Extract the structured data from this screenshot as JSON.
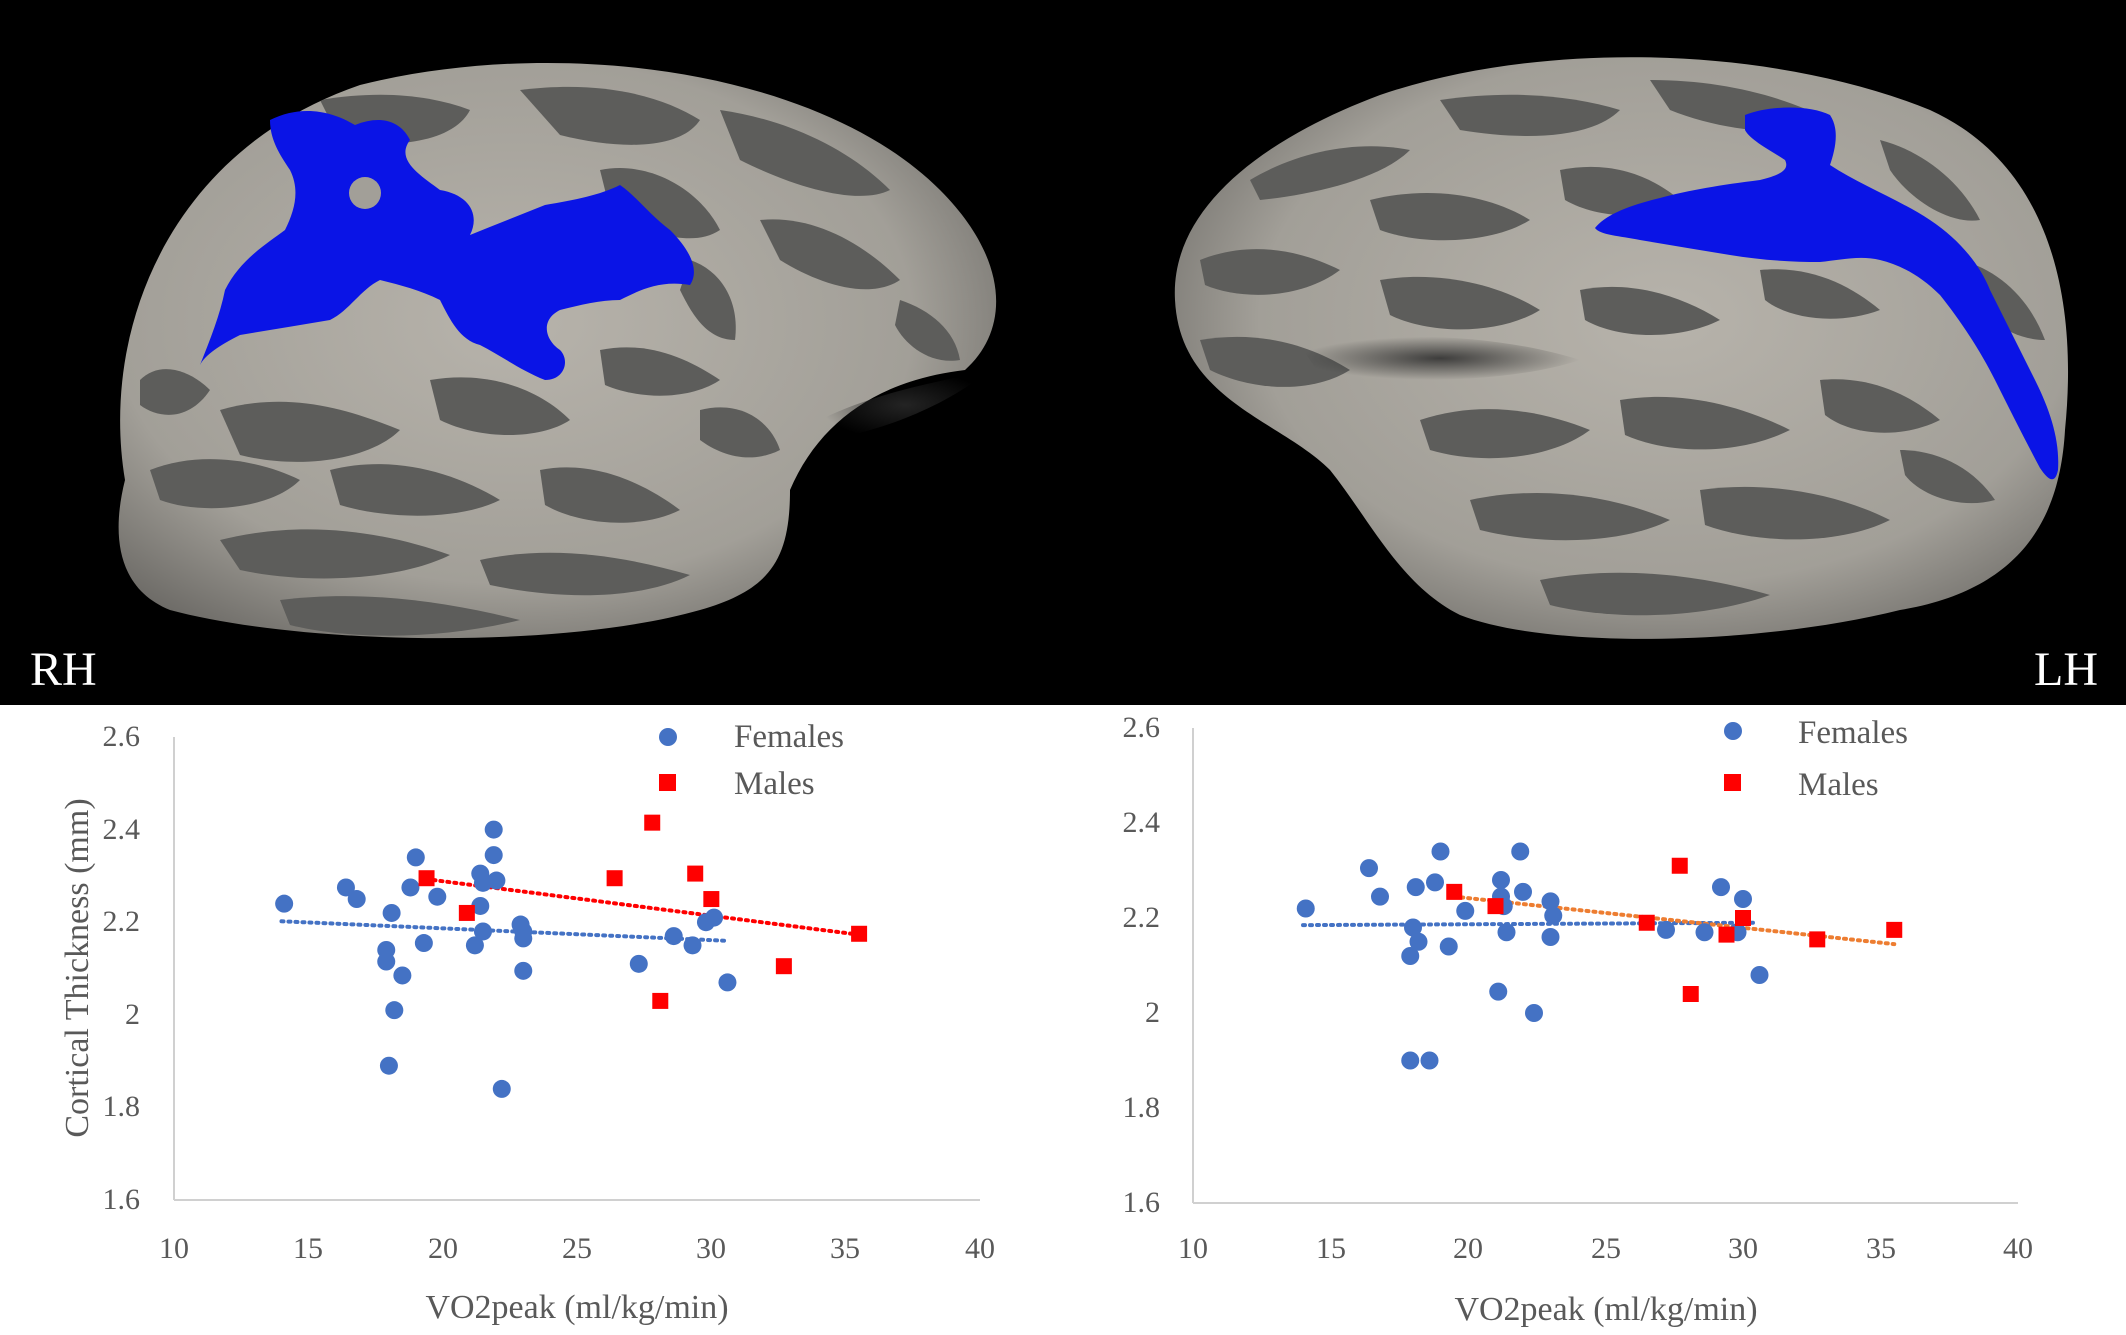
{
  "brain_panel": {
    "right_label": "RH",
    "left_label": "LH",
    "colors": {
      "background": "#000000",
      "surface_light": "#a29f98",
      "surface_dark": "#5d5d5b",
      "cluster": "#0a14e6"
    }
  },
  "chart_data": [
    {
      "type": "scatter",
      "title": "",
      "hemisphere": "RH",
      "xlabel": "VO2peak (ml/kg/min)",
      "ylabel": "Cortical Thickness (mm)",
      "xlim": [
        10,
        40
      ],
      "ylim": [
        1.6,
        2.6
      ],
      "xticks": [
        10,
        15,
        20,
        25,
        30,
        35,
        40
      ],
      "xtick_labels": [
        "10",
        "15",
        "20",
        "25",
        "30",
        "35",
        "40"
      ],
      "yticks": [
        1.6,
        1.8,
        2.0,
        2.2,
        2.4,
        2.6
      ],
      "ytick_labels": [
        "1.6",
        "1.8",
        "2",
        "2.2",
        "2.4",
        "2.6"
      ],
      "grid": false,
      "legend": "top-right",
      "series": [
        {
          "name": "Females",
          "marker": "circle",
          "color": "#4472c4",
          "x": [
            14.1,
            16.4,
            16.8,
            17.9,
            17.9,
            18.0,
            18.1,
            18.2,
            18.5,
            18.8,
            19.0,
            19.3,
            19.8,
            21.2,
            21.4,
            21.4,
            21.5,
            21.5,
            21.9,
            21.9,
            22.0,
            22.2,
            22.9,
            23.0,
            23.0,
            27.3,
            28.6,
            29.3,
            29.8,
            30.1,
            30.6,
            23.0
          ],
          "y": [
            2.24,
            2.275,
            2.25,
            2.14,
            2.115,
            1.89,
            2.22,
            2.01,
            2.085,
            2.275,
            2.34,
            2.155,
            2.255,
            2.15,
            2.305,
            2.235,
            2.285,
            2.18,
            2.345,
            2.4,
            2.29,
            1.84,
            2.195,
            2.095,
            2.165,
            2.11,
            2.17,
            2.15,
            2.2,
            2.21,
            2.07,
            2.18
          ],
          "trend": {
            "style": "dotted",
            "color": "#4472c4",
            "x": [
              14.0,
              30.5
            ],
            "y": [
              2.202,
              2.16
            ]
          }
        },
        {
          "name": "Males",
          "marker": "square",
          "color": "#ff0000",
          "x": [
            19.4,
            20.9,
            26.4,
            27.8,
            28.1,
            29.4,
            30.0,
            32.7,
            35.5
          ],
          "y": [
            2.295,
            2.22,
            2.295,
            2.415,
            2.03,
            2.305,
            2.25,
            2.105,
            2.175
          ],
          "trend": {
            "style": "dotted",
            "color": "#ff0000",
            "x": [
              19.4,
              35.5
            ],
            "y": [
              2.293,
              2.173
            ]
          }
        }
      ]
    },
    {
      "type": "scatter",
      "title": "",
      "hemisphere": "LH",
      "xlabel": "VO2peak (ml/kg/min)",
      "ylabel": "",
      "xlim": [
        10,
        40
      ],
      "ylim": [
        1.6,
        2.6
      ],
      "xticks": [
        10,
        15,
        20,
        25,
        30,
        35,
        40
      ],
      "xtick_labels": [
        "10",
        "15",
        "20",
        "25",
        "30",
        "35",
        "40"
      ],
      "yticks": [
        1.6,
        1.8,
        2.0,
        2.2,
        2.4,
        2.6
      ],
      "ytick_labels": [
        "1.6",
        "1.8",
        "2",
        "2.2",
        "2.4",
        "2.6"
      ],
      "grid": false,
      "legend": "top-right",
      "series": [
        {
          "name": "Females",
          "marker": "circle",
          "color": "#4472c4",
          "x": [
            14.1,
            16.4,
            16.8,
            17.9,
            17.9,
            18.0,
            18.1,
            18.2,
            18.6,
            18.8,
            19.0,
            19.3,
            19.9,
            21.1,
            21.2,
            21.3,
            21.4,
            21.9,
            22.0,
            22.4,
            23.0,
            23.0,
            23.1,
            27.2,
            28.6,
            29.2,
            29.8,
            30.0,
            30.6,
            21.2
          ],
          "y": [
            2.22,
            2.305,
            2.245,
            2.12,
            1.9,
            2.18,
            2.265,
            2.15,
            1.9,
            2.275,
            2.34,
            2.14,
            2.215,
            2.045,
            2.28,
            2.225,
            2.17,
            2.34,
            2.255,
            2.0,
            2.235,
            2.16,
            2.205,
            2.175,
            2.17,
            2.265,
            2.17,
            2.24,
            2.08,
            2.245
          ],
          "trend": {
            "style": "dotted",
            "color": "#4472c4",
            "x": [
              14.0,
              30.5
            ],
            "y": [
              2.185,
              2.19
            ]
          }
        },
        {
          "name": "Males",
          "marker": "square",
          "color": "#ff0000",
          "x": [
            19.5,
            21.0,
            26.5,
            27.7,
            28.1,
            29.4,
            30.0,
            32.7,
            35.5
          ],
          "y": [
            2.255,
            2.225,
            2.19,
            2.31,
            2.04,
            2.165,
            2.2,
            2.155,
            2.175
          ],
          "trend": {
            "style": "dotted",
            "color": "#ed7d31",
            "x": [
              19.5,
              35.5
            ],
            "y": [
              2.245,
              2.145
            ]
          }
        }
      ]
    }
  ]
}
